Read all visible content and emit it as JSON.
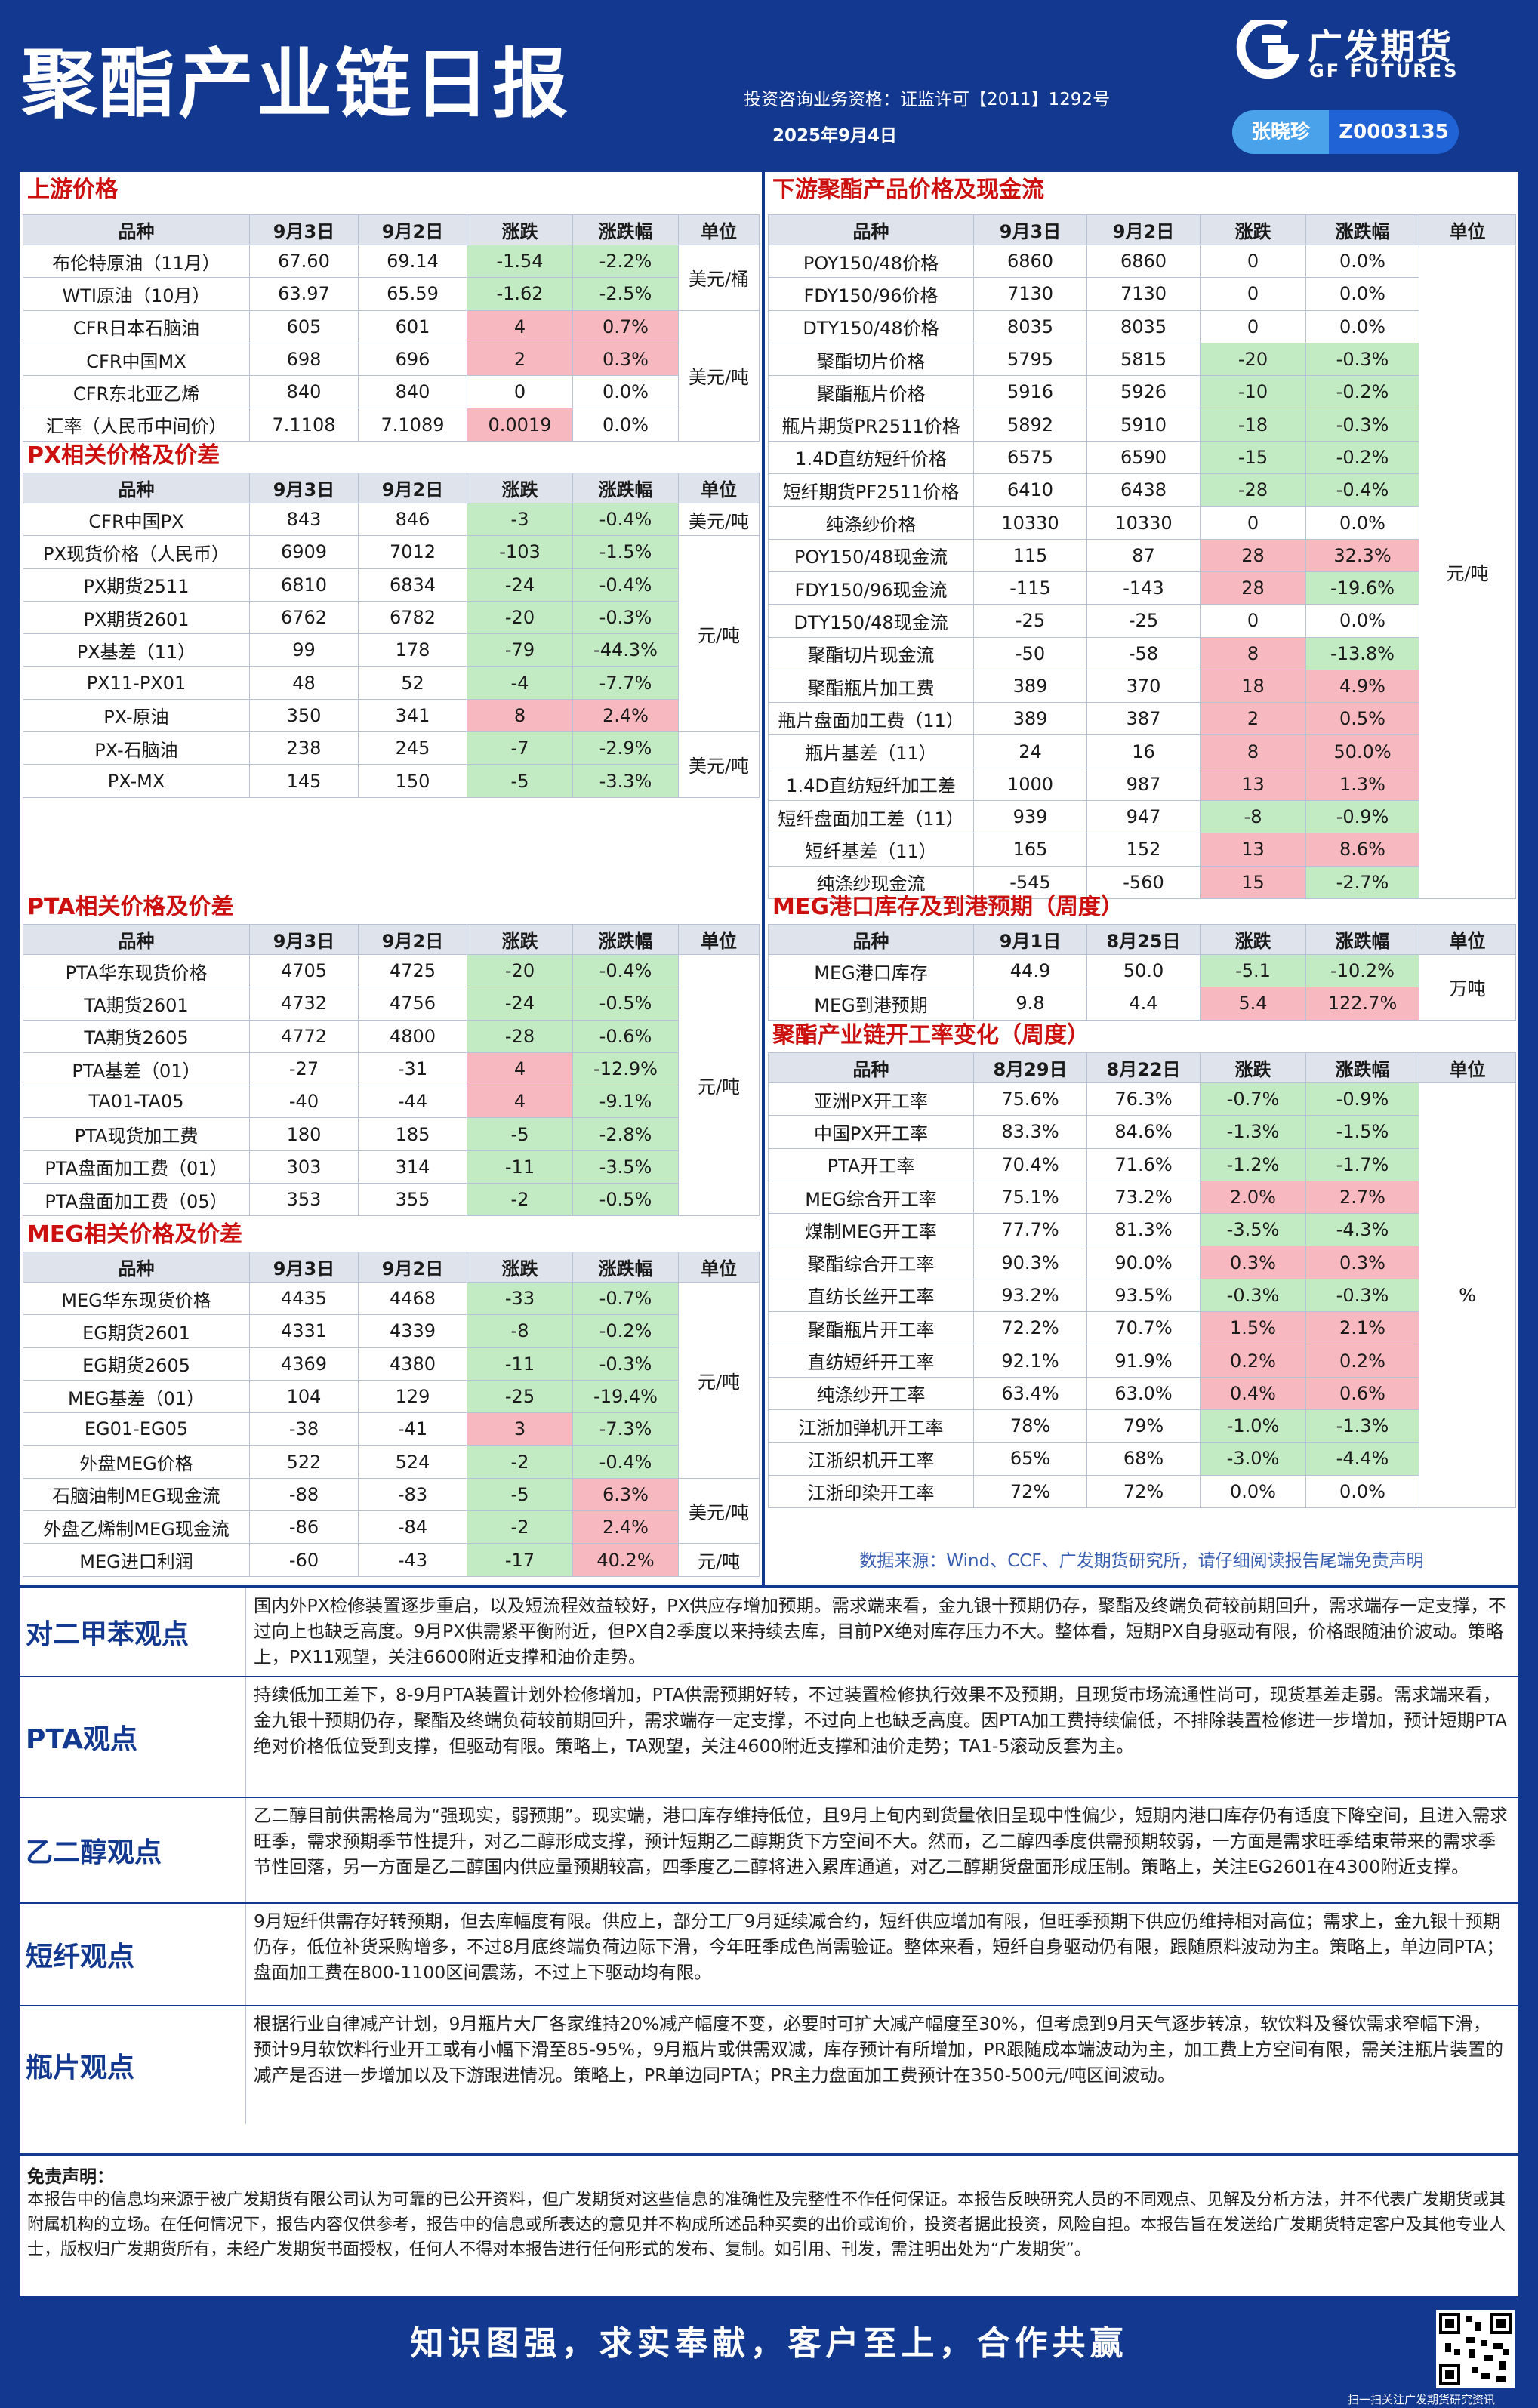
{
  "header": {
    "title": "聚酯产业链日报",
    "logo_cn": "广发期货",
    "logo_en": "GF FUTURES",
    "qualification": "投资咨询业务资格：证监许可【2011】1292号",
    "date": "2025年9月4日",
    "analyst_name": "张晓珍",
    "analyst_code": "Z0003135"
  },
  "upstream": {
    "title": "上游价格",
    "headers": [
      "品种",
      "9月3日",
      "9月2日",
      "涨跌",
      "涨跌幅",
      "单位"
    ],
    "rows": [
      [
        "布伦特原油（11月）",
        "67.60",
        "69.14",
        "-1.54",
        "-2.2%"
      ],
      [
        "WTI原油（10月）",
        "63.97",
        "65.59",
        "-1.62",
        "-2.5%"
      ],
      [
        "CFR日本石脑油",
        "605",
        "601",
        "4",
        "0.7%"
      ],
      [
        "CFR中国MX",
        "698",
        "696",
        "2",
        "0.3%"
      ],
      [
        "CFR东北亚乙烯",
        "840",
        "840",
        "0",
        "0.0%"
      ],
      [
        "汇率（人民币中间价）",
        "7.1108",
        "7.1089",
        "0.0019",
        "0.0%"
      ]
    ],
    "units": [
      "美元/桶",
      "美元/吨"
    ]
  },
  "px": {
    "title": "PX相关价格及价差",
    "headers": [
      "品种",
      "9月3日",
      "9月2日",
      "涨跌",
      "涨跌幅",
      "单位"
    ],
    "rows": [
      [
        "CFR中国PX",
        "843",
        "846",
        "-3",
        "-0.4%"
      ],
      [
        "PX现货价格（人民币）",
        "6909",
        "7012",
        "-103",
        "-1.5%"
      ],
      [
        "PX期货2511",
        "6810",
        "6834",
        "-24",
        "-0.4%"
      ],
      [
        "PX期货2601",
        "6762",
        "6782",
        "-20",
        "-0.3%"
      ],
      [
        "PX基差（11）",
        "99",
        "178",
        "-79",
        "-44.3%"
      ],
      [
        "PX11-PX01",
        "48",
        "52",
        "-4",
        "-7.7%"
      ],
      [
        "PX-原油",
        "350",
        "341",
        "8",
        "2.4%"
      ],
      [
        "PX-石脑油",
        "238",
        "245",
        "-7",
        "-2.9%"
      ],
      [
        "PX-MX",
        "145",
        "150",
        "-5",
        "-3.3%"
      ]
    ],
    "units": [
      "美元/吨",
      "元/吨",
      "美元/吨"
    ]
  },
  "pta": {
    "title": "PTA相关价格及价差",
    "headers": [
      "品种",
      "9月3日",
      "9月2日",
      "涨跌",
      "涨跌幅",
      "单位"
    ],
    "rows": [
      [
        "PTA华东现货价格",
        "4705",
        "4725",
        "-20",
        "-0.4%"
      ],
      [
        "TA期货2601",
        "4732",
        "4756",
        "-24",
        "-0.5%"
      ],
      [
        "TA期货2605",
        "4772",
        "4800",
        "-28",
        "-0.6%"
      ],
      [
        "PTA基差（01）",
        "-27",
        "-31",
        "4",
        "-12.9%"
      ],
      [
        "TA01-TA05",
        "-40",
        "-44",
        "4",
        "-9.1%"
      ],
      [
        "PTA现货加工费",
        "180",
        "185",
        "-5",
        "-2.8%"
      ],
      [
        "PTA盘面加工费（01）",
        "303",
        "314",
        "-11",
        "-3.5%"
      ],
      [
        "PTA盘面加工费（05）",
        "353",
        "355",
        "-2",
        "-0.5%"
      ]
    ],
    "units": [
      "元/吨"
    ]
  },
  "meg": {
    "title": "MEG相关价格及价差",
    "headers": [
      "品种",
      "9月3日",
      "9月2日",
      "涨跌",
      "涨跌幅",
      "单位"
    ],
    "rows": [
      [
        "MEG华东现货价格",
        "4435",
        "4468",
        "-33",
        "-0.7%"
      ],
      [
        "EG期货2601",
        "4331",
        "4339",
        "-8",
        "-0.2%"
      ],
      [
        "EG期货2605",
        "4369",
        "4380",
        "-11",
        "-0.3%"
      ],
      [
        "MEG基差（01）",
        "104",
        "129",
        "-25",
        "-19.4%"
      ],
      [
        "EG01-EG05",
        "-38",
        "-41",
        "3",
        "-7.3%"
      ],
      [
        "外盘MEG价格",
        "522",
        "524",
        "-2",
        "-0.4%"
      ],
      [
        "石脑油制MEG现金流",
        "-88",
        "-83",
        "-5",
        "6.3%"
      ],
      [
        "外盘乙烯制MEG现金流",
        "-86",
        "-84",
        "-2",
        "2.4%"
      ],
      [
        "MEG进口利润",
        "-60",
        "-43",
        "-17",
        "40.2%"
      ]
    ],
    "units": [
      "元/吨",
      "美元/吨",
      "元/吨"
    ]
  },
  "downstream": {
    "title": "下游聚酯产品价格及现金流",
    "headers": [
      "品种",
      "9月3日",
      "9月2日",
      "涨跌",
      "涨跌幅",
      "单位"
    ],
    "rows": [
      [
        "POY150/48价格",
        "6860",
        "6860",
        "0",
        "0.0%"
      ],
      [
        "FDY150/96价格",
        "7130",
        "7130",
        "0",
        "0.0%"
      ],
      [
        "DTY150/48价格",
        "8035",
        "8035",
        "0",
        "0.0%"
      ],
      [
        "聚酯切片价格",
        "5795",
        "5815",
        "-20",
        "-0.3%"
      ],
      [
        "聚酯瓶片价格",
        "5916",
        "5926",
        "-10",
        "-0.2%"
      ],
      [
        "瓶片期货PR2511价格",
        "5892",
        "5910",
        "-18",
        "-0.3%"
      ],
      [
        "1.4D直纺短纤价格",
        "6575",
        "6590",
        "-15",
        "-0.2%"
      ],
      [
        "短纤期货PF2511价格",
        "6410",
        "6438",
        "-28",
        "-0.4%"
      ],
      [
        "纯涤纱价格",
        "10330",
        "10330",
        "0",
        "0.0%"
      ],
      [
        "POY150/48现金流",
        "115",
        "87",
        "28",
        "32.3%"
      ],
      [
        "FDY150/96现金流",
        "-115",
        "-143",
        "28",
        "-19.6%"
      ],
      [
        "DTY150/48现金流",
        "-25",
        "-25",
        "0",
        "0.0%"
      ],
      [
        "聚酯切片现金流",
        "-50",
        "-58",
        "8",
        "-13.8%"
      ],
      [
        "聚酯瓶片加工费",
        "389",
        "370",
        "18",
        "4.9%"
      ],
      [
        "瓶片盘面加工费（11）",
        "389",
        "387",
        "2",
        "0.5%"
      ],
      [
        "瓶片基差（11）",
        "24",
        "16",
        "8",
        "50.0%"
      ],
      [
        "1.4D直纺短纤加工差",
        "1000",
        "987",
        "13",
        "1.3%"
      ],
      [
        "短纤盘面加工差（11）",
        "939",
        "947",
        "-8",
        "-0.9%"
      ],
      [
        "短纤基差（11）",
        "165",
        "152",
        "13",
        "8.6%"
      ],
      [
        "纯涤纱现金流",
        "-545",
        "-560",
        "15",
        "-2.7%"
      ]
    ],
    "units": [
      "元/吨"
    ]
  },
  "meg_port": {
    "title": "MEG港口库存及到港预期（周度）",
    "headers": [
      "品种",
      "9月1日",
      "8月25日",
      "涨跌",
      "涨跌幅",
      "单位"
    ],
    "rows": [
      [
        "MEG港口库存",
        "44.9",
        "50.0",
        "-5.1",
        "-10.2%"
      ],
      [
        "MEG到港预期",
        "9.8",
        "4.4",
        "5.4",
        "122.7%"
      ]
    ],
    "units": [
      "万吨"
    ]
  },
  "operating": {
    "title": "聚酯产业链开工率变化（周度）",
    "headers": [
      "品种",
      "8月29日",
      "8月22日",
      "涨跌",
      "涨跌幅",
      "单位"
    ],
    "rows": [
      [
        "亚洲PX开工率",
        "75.6%",
        "76.3%",
        "-0.7%",
        "-0.9%"
      ],
      [
        "中国PX开工率",
        "83.3%",
        "84.6%",
        "-1.3%",
        "-1.5%"
      ],
      [
        "PTA开工率",
        "70.4%",
        "71.6%",
        "-1.2%",
        "-1.7%"
      ],
      [
        "MEG综合开工率",
        "75.1%",
        "73.2%",
        "2.0%",
        "2.7%"
      ],
      [
        "煤制MEG开工率",
        "77.7%",
        "81.3%",
        "-3.5%",
        "-4.3%"
      ],
      [
        "聚酯综合开工率",
        "90.3%",
        "90.0%",
        "0.3%",
        "0.3%"
      ],
      [
        "直纺长丝开工率",
        "93.2%",
        "93.5%",
        "-0.3%",
        "-0.3%"
      ],
      [
        "聚酯瓶片开工率",
        "72.2%",
        "70.7%",
        "1.5%",
        "2.1%"
      ],
      [
        "直纺短纤开工率",
        "92.1%",
        "91.9%",
        "0.2%",
        "0.2%"
      ],
      [
        "纯涤纱开工率",
        "63.4%",
        "63.0%",
        "0.4%",
        "0.6%"
      ],
      [
        "江浙加弹机开工率",
        "78%",
        "79%",
        "-1.0%",
        "-1.3%"
      ],
      [
        "江浙织机开工率",
        "65%",
        "68%",
        "-3.0%",
        "-4.4%"
      ],
      [
        "江浙印染开工率",
        "72%",
        "72%",
        "0.0%",
        "0.0%"
      ]
    ],
    "units": [
      "%"
    ]
  },
  "data_source": "数据来源：Wind、CCF、广发期货研究所，请仔细阅读报告尾端免责声明",
  "views": [
    {
      "label": "对二甲苯观点",
      "text": "国内外PX检修装置逐步重启，以及短流程效益较好，PX供应存增加预期。需求端来看，金九银十预期仍存，聚酯及终端负荷较前期回升，需求端存一定支撑，不过向上也缺乏高度。9月PX供需紧平衡附近，但PX自2季度以来持续去库，目前PX绝对库存压力不大。整体看，短期PX自身驱动有限，价格跟随油价波动。策略上，PX11观望，关注6600附近支撑和油价走势。"
    },
    {
      "label": "PTA观点",
      "text": "持续低加工差下，8-9月PTA装置计划外检修增加，PTA供需预期好转，不过装置检修执行效果不及预期，且现货市场流通性尚可，现货基差走弱。需求端来看，金九银十预期仍存，聚酯及终端负荷较前期回升，需求端存一定支撑，不过向上也缺乏高度。因PTA加工费持续偏低，不排除装置检修进一步增加，预计短期PTA绝对价格低位受到支撑，但驱动有限。策略上，TA观望，关注4600附近支撑和油价走势；TA1-5滚动反套为主。"
    },
    {
      "label": "乙二醇观点",
      "text": "乙二醇目前供需格局为“强现实，弱预期”。现实端，港口库存维持低位，且9月上旬内到货量依旧呈现中性偏少，短期内港口库存仍有适度下降空间，且进入需求旺季，需求预期季节性提升，对乙二醇形成支撑，预计短期乙二醇期货下方空间不大。然而，乙二醇四季度供需预期较弱，一方面是需求旺季结束带来的需求季节性回落，另一方面是乙二醇国内供应量预期较高，四季度乙二醇将进入累库通道，对乙二醇期货盘面形成压制。策略上，关注EG2601在4300附近支撑。"
    },
    {
      "label": "短纤观点",
      "text": "9月短纤供需存好转预期，但去库幅度有限。供应上，部分工厂9月延续减合约，短纤供应增加有限，但旺季预期下供应仍维持相对高位；需求上，金九银十预期仍存，低位补货采购增多，不过8月底终端负荷边际下滑，今年旺季成色尚需验证。整体来看，短纤自身驱动仍有限，跟随原料波动为主。策略上，单边同PTA；盘面加工费在800-1100区间震荡，不过上下驱动均有限。"
    },
    {
      "label": "瓶片观点",
      "text": "根据行业自律减产计划，9月瓶片大厂各家维持20%减产幅度不变，必要时可扩大减产幅度至30%，但考虑到9月天气逐步转凉，软饮料及餐饮需求窄幅下滑，预计9月软饮料行业开工或有小幅下滑至85-95%，9月瓶片或供需双减，库存预计有所增加，PR跟随成本端波动为主，加工费上方空间有限，需关注瓶片装置的减产是否进一步增加以及下游跟进情况。策略上，PR单边同PTA；PR主力盘面加工费预计在350-500元/吨区间波动。"
    }
  ],
  "disclaimer": {
    "title": "免责声明：",
    "text": "本报告中的信息均来源于被广发期货有限公司认为可靠的已公开资料，但广发期货对这些信息的准确性及完整性不作任何保证。本报告反映研究人员的不同观点、见解及分析方法，并不代表广发期货或其附属机构的立场。在任何情况下，报告内容仅供参考，报告中的信息或所表达的意见并不构成所述品种买卖的出价或询价，投资者据此投资，风险自担。本报告旨在发送给广发期货特定客户及其他专业人士，版权归广发期货所有，未经广发期货书面授权，任何人不得对本报告进行任何形式的发布、复制。如引用、刊发，需注明出处为“广发期货”。"
  },
  "footer": {
    "slogan": "知识图强，求实奉献，客户至上，合作共赢",
    "qr_caption": "扫一扫关注广发期货研究资讯"
  },
  "colors": {
    "brand": "#12388f",
    "up": "#f7b9bf",
    "down": "#c2ebc4",
    "title_red": "#cc1010"
  }
}
